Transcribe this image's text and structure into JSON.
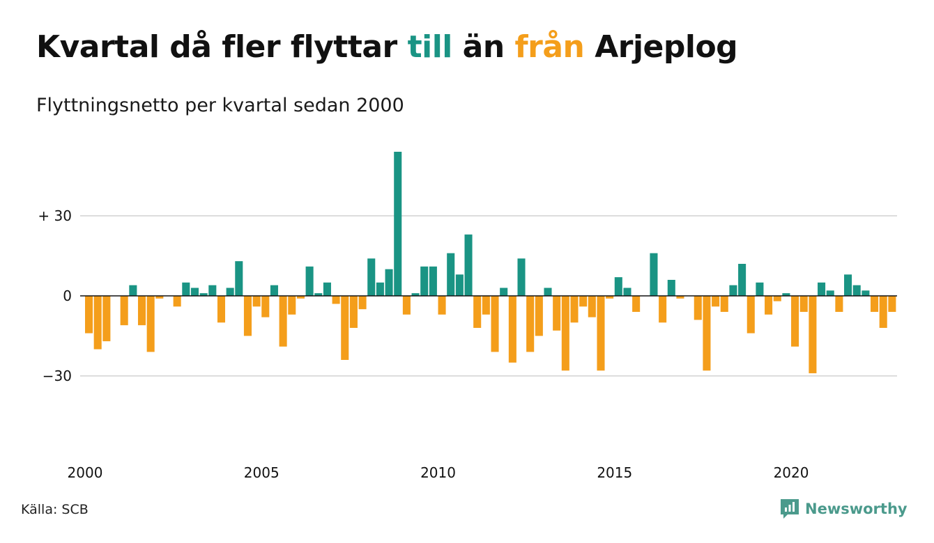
{
  "title": {
    "part1": "Kvartal då fler flyttar ",
    "highlight_to": "till",
    "part2": " än ",
    "highlight_from": "från",
    "part3": " Arjeplog"
  },
  "subtitle": "Flyttningsnetto per kvartal sedan 2000",
  "source": "Källa: SCB",
  "brand": {
    "name": "Newsworthy",
    "icon": "newsworthy-logo-icon"
  },
  "colors": {
    "positive": "#1a9484",
    "negative": "#f49e1b",
    "grid": "#dddddd",
    "zero": "#111111",
    "brand": "#4b9a8c"
  },
  "chart_data": {
    "type": "bar",
    "title": "Kvartal då fler flyttar till än från Arjeplog",
    "subtitle": "Flyttningsnetto per kvartal sedan 2000",
    "x_start": "2000Q1",
    "x_ticks": [
      "2000",
      "2005",
      "2010",
      "2015",
      "2020"
    ],
    "y_ticks": [
      {
        "value": 30,
        "label": "+ 30"
      },
      {
        "value": 0,
        "label": "0"
      },
      {
        "value": -30,
        "label": "−30"
      }
    ],
    "ylim": [
      -58,
      58
    ],
    "grid": true,
    "series": [
      {
        "values": [
          -14,
          -20,
          -17,
          0,
          -11,
          4,
          -11,
          -21,
          -1,
          0,
          -4,
          5,
          3,
          1,
          4,
          -10,
          3,
          13,
          -15,
          -4,
          -8,
          4,
          -19,
          -7,
          -1,
          11,
          1,
          5,
          -3,
          -24,
          -12,
          -5,
          14,
          5,
          10,
          54,
          -7,
          1,
          11,
          11,
          -7,
          16,
          8,
          23,
          -12,
          -7,
          -21,
          3,
          -25,
          14,
          -21,
          -15,
          3,
          -13,
          -28,
          -10,
          -4,
          -8,
          -28,
          -1,
          7,
          3,
          -6,
          0,
          16,
          -10,
          6,
          -1,
          0,
          -9,
          -28,
          -4,
          -6,
          4,
          12,
          -14,
          5,
          -7,
          -2,
          1,
          -19,
          -6,
          -29,
          5,
          2,
          -6,
          8,
          4,
          2,
          -6,
          -12,
          -6
        ]
      }
    ]
  }
}
